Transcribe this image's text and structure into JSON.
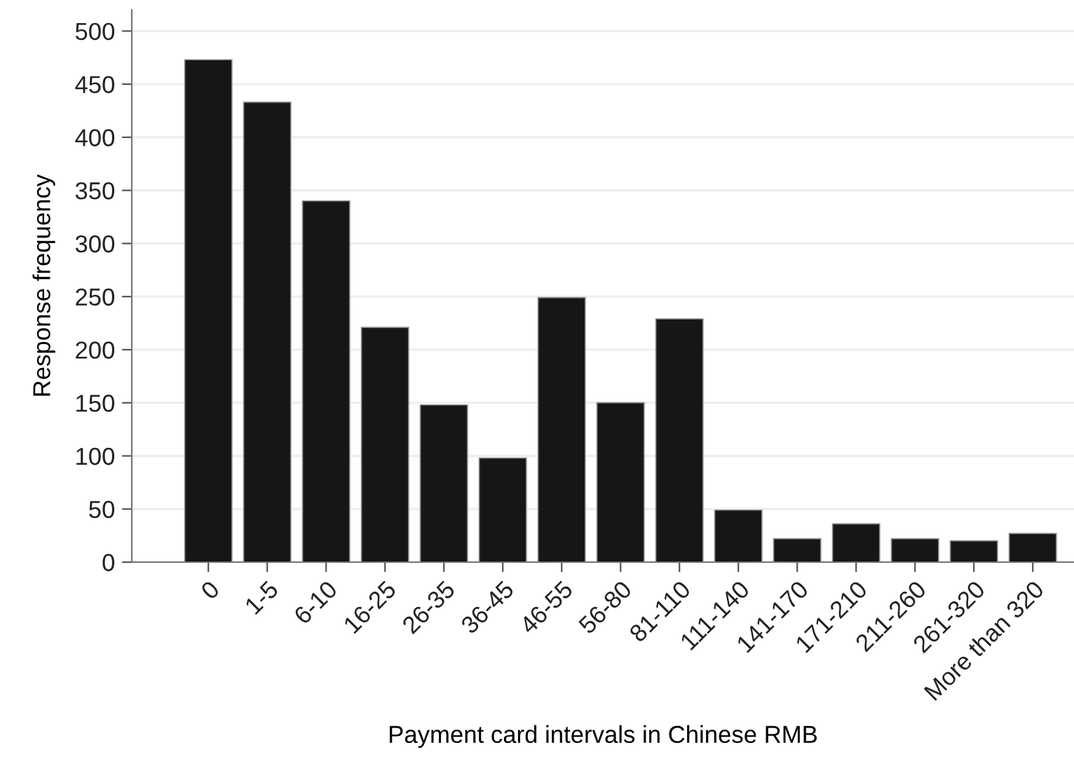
{
  "chart_data": {
    "type": "bar",
    "xlabel": "Payment card intervals in Chinese RMB",
    "ylabel": "Response frequency",
    "categories": [
      "0",
      "1-5",
      "6-10",
      "16-25",
      "26-35",
      "36-45",
      "46-55",
      "56-80",
      "81-110",
      "111-140",
      "141-170",
      "171-210",
      "211-260",
      "261-320",
      "More than 320"
    ],
    "values": [
      473,
      433,
      340,
      221,
      148,
      98,
      249,
      150,
      229,
      49,
      22,
      36,
      22,
      20,
      27
    ],
    "color": "#161616",
    "ylim": [
      0,
      520
    ],
    "yticks": [
      0,
      50,
      100,
      150,
      200,
      250,
      300,
      350,
      400,
      450,
      500
    ],
    "grid": "y",
    "legend": false
  }
}
